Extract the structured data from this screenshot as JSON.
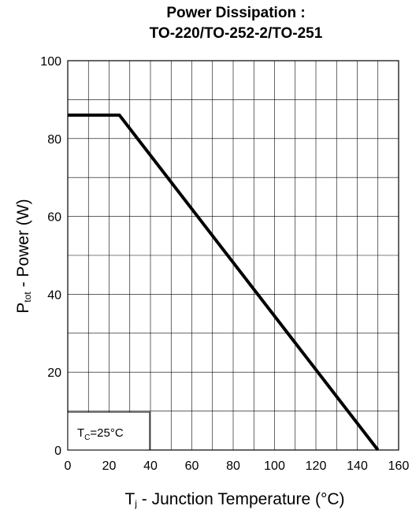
{
  "chart_data": {
    "type": "line",
    "title": [
      "Power Dissipation :",
      "TO-220/TO-252-2/TO-251"
    ],
    "ylabel": {
      "main": "P",
      "sub": "tot",
      "rest": " - Power (W)"
    },
    "xlabel": {
      "main": "T",
      "sub": "j",
      "rest": " - Junction Temperature (°C)"
    },
    "xlim": [
      0,
      160
    ],
    "ylim": [
      0,
      100
    ],
    "x_ticks": [
      0,
      20,
      40,
      60,
      80,
      100,
      120,
      140,
      160
    ],
    "y_ticks": [
      0,
      20,
      40,
      60,
      80,
      100
    ],
    "grid": true,
    "series": [
      {
        "x": [
          0,
          25,
          150
        ],
        "y": [
          86,
          86,
          0
        ],
        "color": "#000000"
      }
    ],
    "annotation": {
      "main": "T",
      "sub": "C",
      "rest": "=25°C"
    }
  }
}
